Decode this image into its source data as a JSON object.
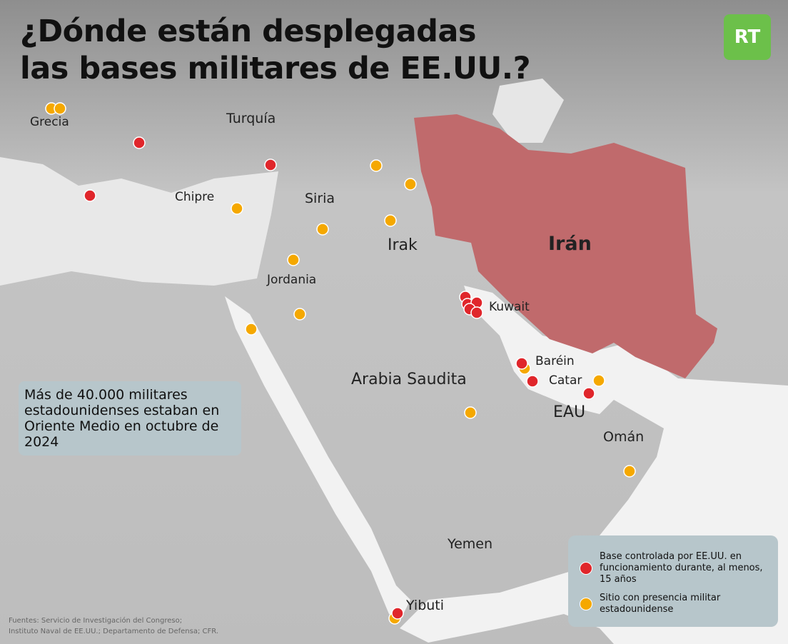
{
  "title": {
    "line1": "¿Dónde están desplegadas",
    "line2": "las bases militares de EE.UU.?"
  },
  "logo": "RT",
  "colors": {
    "red": "#e0262b",
    "yellow": "#f5a800",
    "iran": "#c06a6c",
    "land": "#bdbdbd",
    "sea": "#f2f2f2",
    "box": "#b7c6cb",
    "logo": "#6cc04a"
  },
  "labels": {
    "grecia": "Grecia",
    "turquia": "Turquía",
    "chipre": "Chipre",
    "siria": "Siria",
    "irak": "Irak",
    "iran": "Irán",
    "jordania": "Jordania",
    "kuwait": "Kuwait",
    "barein": "Baréin",
    "catar": "Catar",
    "eau": "EAU",
    "arabia": "Arabia Saudita",
    "oman": "Omán",
    "yemen": "Yemen",
    "yibuti": "Yibuti"
  },
  "note": "Más de 40.000 militares estadounidenses estaban en Oriente Medio en octubre de 2024",
  "legend": {
    "red": "Base controlada por EE.UU. en funcionamiento durante, al menos, 15 años",
    "yellow": "Sitio con presencia militar estadounidense"
  },
  "sources": {
    "line1": "Fuentes: Servicio de Investigación del Congreso;",
    "line2": "Instituto Naval de EE.UU.; Departamento de Defensa; CFR."
  }
}
